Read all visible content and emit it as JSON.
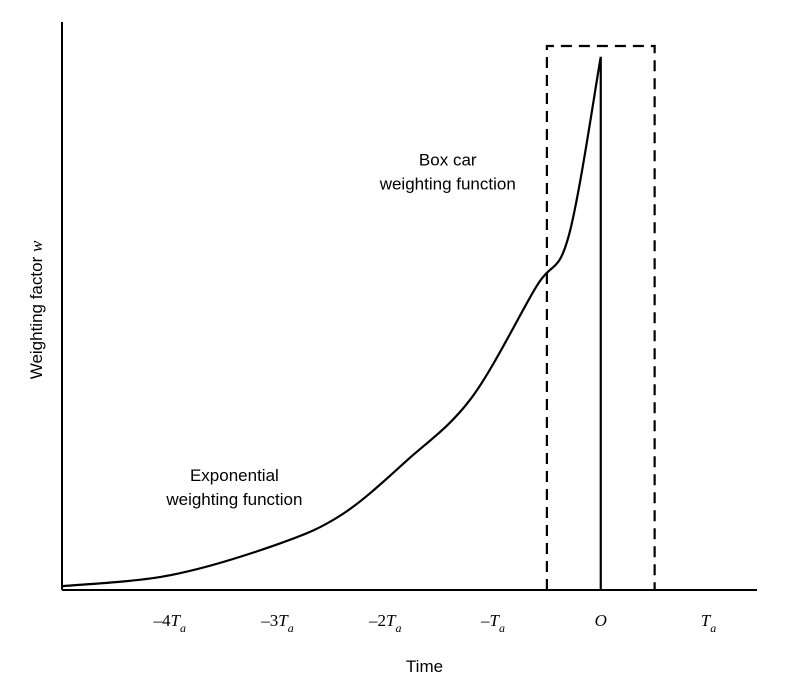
{
  "chart_data": {
    "type": "line",
    "title": "",
    "xlabel": "Time",
    "ylabel": "Weighting factor",
    "ylabel_variable": "w",
    "xlim": [
      -5.0,
      1.45
    ],
    "ylim": [
      0,
      1
    ],
    "x_ticks": [
      {
        "x": -4,
        "prefix": "–4",
        "main": "T",
        "sub": "a"
      },
      {
        "x": -3,
        "prefix": "–3",
        "main": "T",
        "sub": "a"
      },
      {
        "x": -2,
        "prefix": "–2",
        "main": "T",
        "sub": "a"
      },
      {
        "x": -1,
        "prefix": "–",
        "main": "T",
        "sub": "a"
      },
      {
        "x": 0,
        "prefix": "",
        "main": "O",
        "sub": ""
      },
      {
        "x": 1,
        "prefix": "",
        "main": "T",
        "sub": "a"
      }
    ],
    "series": [
      {
        "style": "solid",
        "x": [
          -5.0,
          -4.0,
          -3.0,
          -2.4,
          -1.8,
          -1.2,
          -0.6,
          -0.3,
          0.0,
          0.0
        ],
        "y": [
          0.007,
          0.027,
          0.084,
          0.139,
          0.238,
          0.353,
          0.557,
          0.649,
          0.98,
          0.0
        ]
      },
      {
        "style": "dashed",
        "x": [
          -0.5,
          -0.5,
          0.5,
          0.5
        ],
        "y": [
          0.0,
          1.0,
          1.0,
          0.0
        ]
      }
    ],
    "annotations": [
      {
        "lines": [
          "Exponential",
          "weighting function"
        ],
        "x": -3.4,
        "y": 0.2
      },
      {
        "lines": [
          "Box car",
          "weighting function"
        ],
        "x": -1.42,
        "y": 0.78
      }
    ],
    "grid": false,
    "legend": false,
    "colors": {
      "line": "#000000",
      "background": "#ffffff"
    }
  }
}
